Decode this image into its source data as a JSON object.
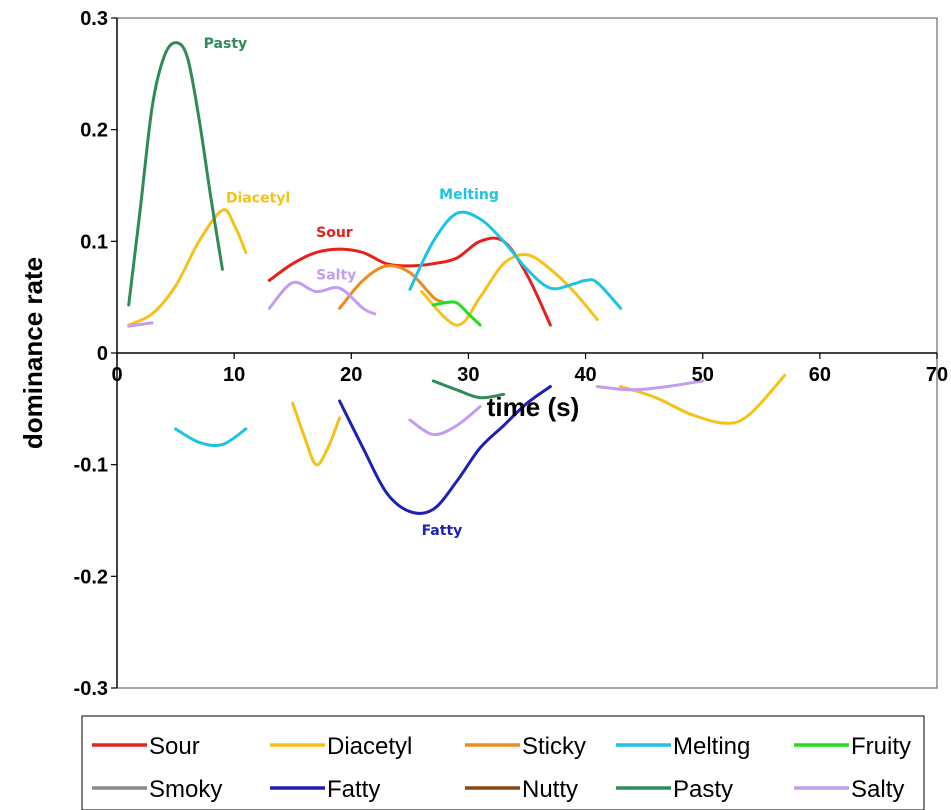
{
  "chart_data": {
    "type": "line",
    "xlabel": "time (s)",
    "ylabel": "dominance rate",
    "xlim": [
      0,
      70
    ],
    "ylim": [
      -0.3,
      0.3
    ],
    "x_ticks": [
      "0",
      "10",
      "20",
      "30",
      "40",
      "50",
      "60",
      "70"
    ],
    "y_ticks": [
      "0.3",
      "0.2",
      "0.1",
      "0",
      "-0.1",
      "-0.2",
      "-0.3"
    ],
    "grid": false,
    "legend_position": "bottom",
    "series": [
      {
        "name": "Sour",
        "color": "#e8201c",
        "segments": [
          [
            [
              13,
              0.065
            ],
            [
              15,
              0.08
            ],
            [
              17,
              0.09
            ],
            [
              19,
              0.093
            ],
            [
              21,
              0.09
            ],
            [
              23,
              0.08
            ],
            [
              25,
              0.078
            ],
            [
              27,
              0.08
            ],
            [
              29,
              0.085
            ],
            [
              31,
              0.1
            ],
            [
              33,
              0.1
            ],
            [
              35,
              0.07
            ],
            [
              37,
              0.025
            ]
          ]
        ]
      },
      {
        "name": "Diacetyl",
        "color": "#f5c21b",
        "segments": [
          [
            [
              1,
              0.025
            ],
            [
              3,
              0.035
            ],
            [
              5,
              0.06
            ],
            [
              7,
              0.1
            ],
            [
              9,
              0.128
            ],
            [
              10,
              0.115
            ],
            [
              11,
              0.09
            ]
          ],
          [
            [
              26,
              0.055
            ],
            [
              29,
              0.025
            ],
            [
              31,
              0.05
            ],
            [
              33,
              0.08
            ],
            [
              35,
              0.088
            ],
            [
              37,
              0.075
            ],
            [
              39,
              0.055
            ],
            [
              41,
              0.03
            ]
          ],
          [
            [
              15,
              -0.045
            ],
            [
              16,
              -0.075
            ],
            [
              17,
              -0.1
            ],
            [
              18,
              -0.085
            ],
            [
              19,
              -0.058
            ]
          ],
          [
            [
              43,
              -0.03
            ],
            [
              46,
              -0.04
            ],
            [
              49,
              -0.055
            ],
            [
              52,
              -0.063
            ],
            [
              54,
              -0.055
            ],
            [
              57,
              -0.02
            ]
          ]
        ]
      },
      {
        "name": "Sticky",
        "color": "#f08a1c",
        "segments": [
          [
            [
              19,
              0.04
            ],
            [
              21,
              0.065
            ],
            [
              23,
              0.078
            ],
            [
              25,
              0.072
            ],
            [
              27,
              0.05
            ],
            [
              28,
              0.045
            ]
          ]
        ]
      },
      {
        "name": "Melting",
        "color": "#1dc4e2",
        "segments": [
          [
            [
              25,
              0.057
            ],
            [
              27,
              0.1
            ],
            [
              29,
              0.125
            ],
            [
              31,
              0.12
            ],
            [
              33,
              0.1
            ],
            [
              35,
              0.075
            ],
            [
              37,
              0.058
            ],
            [
              39,
              0.062
            ],
            [
              40,
              0.065
            ],
            [
              41,
              0.063
            ],
            [
              43,
              0.04
            ]
          ],
          [
            [
              5,
              -0.068
            ],
            [
              7,
              -0.08
            ],
            [
              9,
              -0.082
            ],
            [
              11,
              -0.068
            ]
          ]
        ]
      },
      {
        "name": "Fruity",
        "color": "#22dd22",
        "segments": [
          [
            [
              27,
              0.043
            ],
            [
              28,
              0.045
            ],
            [
              29,
              0.045
            ],
            [
              30,
              0.035
            ],
            [
              31,
              0.025
            ]
          ]
        ]
      },
      {
        "name": "Smoky",
        "color": "#8a8a8a",
        "segments": []
      },
      {
        "name": "Fatty",
        "color": "#1f1fb6",
        "segments": [
          [
            [
              19,
              -0.043
            ],
            [
              21,
              -0.085
            ],
            [
              23,
              -0.125
            ],
            [
              25,
              -0.142
            ],
            [
              27,
              -0.14
            ],
            [
              29,
              -0.115
            ],
            [
              31,
              -0.085
            ],
            [
              33,
              -0.065
            ],
            [
              35,
              -0.045
            ],
            [
              37,
              -0.03
            ]
          ]
        ]
      },
      {
        "name": "Nutty",
        "color": "#8b4513",
        "segments": []
      },
      {
        "name": "Pasty",
        "color": "#2e8b57",
        "segments": [
          [
            [
              1,
              0.043
            ],
            [
              2,
              0.13
            ],
            [
              3,
              0.22
            ],
            [
              4,
              0.265
            ],
            [
              5,
              0.278
            ],
            [
              6,
              0.265
            ],
            [
              7,
              0.21
            ],
            [
              8,
              0.14
            ],
            [
              9,
              0.075
            ]
          ],
          [
            [
              27,
              -0.025
            ],
            [
              29,
              -0.033
            ],
            [
              31,
              -0.04
            ],
            [
              33,
              -0.037
            ]
          ]
        ]
      },
      {
        "name": "Salty",
        "color": "#c49cf0",
        "segments": [
          [
            [
              1,
              0.024
            ],
            [
              3,
              0.027
            ]
          ],
          [
            [
              13,
              0.04
            ],
            [
              15,
              0.063
            ],
            [
              17,
              0.055
            ],
            [
              19,
              0.058
            ],
            [
              21,
              0.04
            ],
            [
              22,
              0.035
            ]
          ],
          [
            [
              25,
              -0.06
            ],
            [
              27,
              -0.073
            ],
            [
              29,
              -0.065
            ],
            [
              31,
              -0.048
            ]
          ],
          [
            [
              41,
              -0.03
            ],
            [
              44,
              -0.033
            ],
            [
              47,
              -0.03
            ],
            [
              50,
              -0.025
            ]
          ]
        ]
      }
    ],
    "annotations": [
      {
        "text": "Pasty",
        "x": 7.4,
        "y": 0.273,
        "color": "#2e8b57"
      },
      {
        "text": "Diacetyl",
        "x": 9.3,
        "y": 0.135,
        "color": "#f5c21b"
      },
      {
        "text": "Sour",
        "x": 17,
        "y": 0.104,
        "color": "#e8201c"
      },
      {
        "text": "Melting",
        "x": 27.5,
        "y": 0.138,
        "color": "#1dc4e2"
      },
      {
        "text": "Salty",
        "x": 17,
        "y": 0.066,
        "color": "#c49cf0"
      },
      {
        "text": "Fatty",
        "x": 26,
        "y": -0.163,
        "color": "#1f1fb6"
      }
    ]
  }
}
